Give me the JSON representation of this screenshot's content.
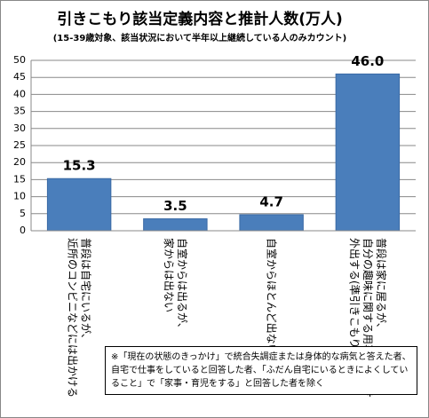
{
  "chart_data": {
    "type": "bar",
    "title": "引きこもり該当定義内容と推計人数(万人)",
    "subtitle": "(15-39歳対象、該当状況において半年以上継続している人のみカウント)",
    "categories": [
      "普段は自宅にいるが、近所のコンビニなどには出かける",
      "自室からは出るが、家からは出ない",
      "自室からほとんど出ない",
      "普段は家に居るが、自分の趣味に関する用事の時だけ外出する(準引きこもり)"
    ],
    "values": [
      15.3,
      3.5,
      4.7,
      46.0
    ],
    "value_labels": [
      "15.3",
      "3.5",
      "4.7",
      "46.0"
    ],
    "color": "#4a7ebb",
    "ylim": [
      0,
      50
    ],
    "yticks": [
      0,
      5,
      10,
      15,
      20,
      25,
      30,
      35,
      40,
      45,
      50
    ],
    "grid": true,
    "note": "※「現在の状態のきっかけ」で統合失調症または身体的な病気と答えた者、自宅で仕事をしていると回答した者、「ふだん自宅にいるときによくしていること」で「家事・育児をする」と回答した者を除く"
  }
}
